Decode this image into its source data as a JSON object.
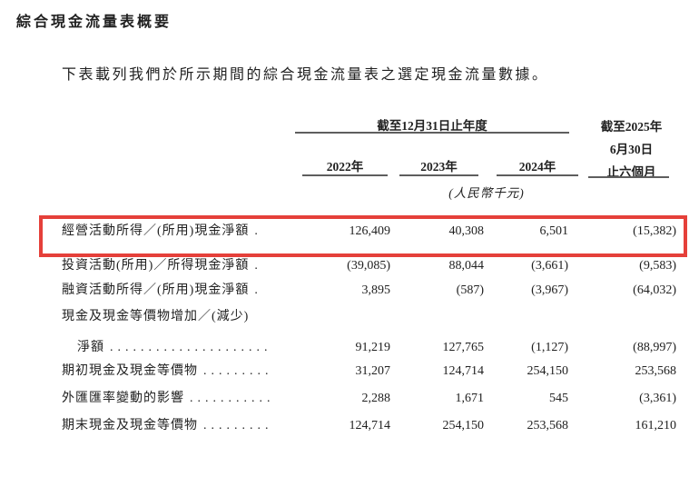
{
  "page": {
    "title": "綜合現金流量表概要",
    "intro": "下表載列我們於所示期間的綜合現金流量表之選定現金流量數據。"
  },
  "table": {
    "header": {
      "year_group": "截至12月31日止年度",
      "interim_line1": "截至2025年",
      "interim_line2": "6月30日",
      "interim_line3": "止六個月",
      "years": [
        "2022年",
        "2023年",
        "2024年"
      ],
      "unit_note": "(人民幣千元)"
    },
    "rows": [
      {
        "label": "經營活動所得／(所用)現金淨額",
        "leader": ".",
        "values": [
          "126,409",
          "40,308",
          "6,501",
          "(15,382)"
        ],
        "highlighted": true
      },
      {
        "label": "投資活動(所用)／所得現金淨額",
        "leader": ".",
        "values": [
          "(39,085)",
          "88,044",
          "(3,661)",
          "(9,583)"
        ],
        "highlighted": false
      },
      {
        "label": "融資活動所得／(所用)現金淨額",
        "leader": ".",
        "values": [
          "3,895",
          "(587)",
          "(3,967)",
          "(64,032)"
        ],
        "highlighted": false
      },
      {
        "label": "現金及現金等價物增加／(減少)",
        "leader": "",
        "values": [
          "",
          "",
          "",
          ""
        ],
        "highlighted": false
      },
      {
        "label": "淨額",
        "leader": ".....................",
        "values": [
          "91,219",
          "127,765",
          "(1,127)",
          "(88,997)"
        ],
        "highlighted": false
      },
      {
        "label": "期初現金及現金等價物",
        "leader": ".........",
        "values": [
          "31,207",
          "124,714",
          "254,150",
          "253,568"
        ],
        "highlighted": false
      },
      {
        "label": "外匯匯率變動的影響",
        "leader": "...........",
        "values": [
          "2,288",
          "1,671",
          "545",
          "(3,361)"
        ],
        "highlighted": false
      },
      {
        "label": "期末現金及現金等價物",
        "leader": ".........",
        "values": [
          "124,714",
          "254,150",
          "253,568",
          "161,210"
        ],
        "highlighted": false
      }
    ],
    "highlight_color": "#e5403a"
  }
}
